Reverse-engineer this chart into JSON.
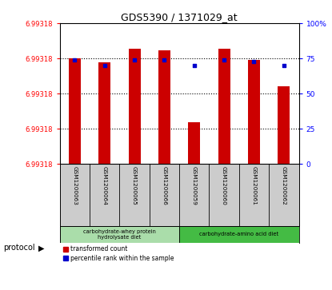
{
  "title": "GDS5390 / 1371029_at",
  "samples": [
    "GSM1200063",
    "GSM1200064",
    "GSM1200065",
    "GSM1200066",
    "GSM1200059",
    "GSM1200060",
    "GSM1200061",
    "GSM1200062"
  ],
  "red_values": [
    75,
    72,
    82,
    81,
    30,
    82,
    74,
    55
  ],
  "blue_values": [
    74,
    70,
    74,
    74,
    70,
    74,
    73,
    70
  ],
  "y_left_labels": [
    "6.99318",
    "6.99318",
    "6.99318",
    "6.99318",
    "6.99318"
  ],
  "y_left_ticks": [
    0,
    25,
    50,
    75,
    100
  ],
  "y_right_ticks": [
    0,
    25,
    50,
    75,
    100
  ],
  "y_right_labels": [
    "0",
    "25",
    "50",
    "75",
    "100%"
  ],
  "ylim": [
    0,
    100
  ],
  "dotted_lines": [
    25,
    50,
    75
  ],
  "protocol_groups": [
    {
      "label": "carbohydrate-whey protein\nhydrolysate diet",
      "color": "#aaddaa",
      "start": 0,
      "end": 4
    },
    {
      "label": "carbohydrate-amino acid diet",
      "color": "#44bb44",
      "start": 4,
      "end": 8
    }
  ],
  "legend_red_label": "transformed count",
  "legend_blue_label": "percentile rank within the sample",
  "bar_color": "#cc0000",
  "dot_color": "#0000cc",
  "protocol_label": "protocol",
  "sample_box_color": "#cccccc",
  "bar_width": 0.4
}
